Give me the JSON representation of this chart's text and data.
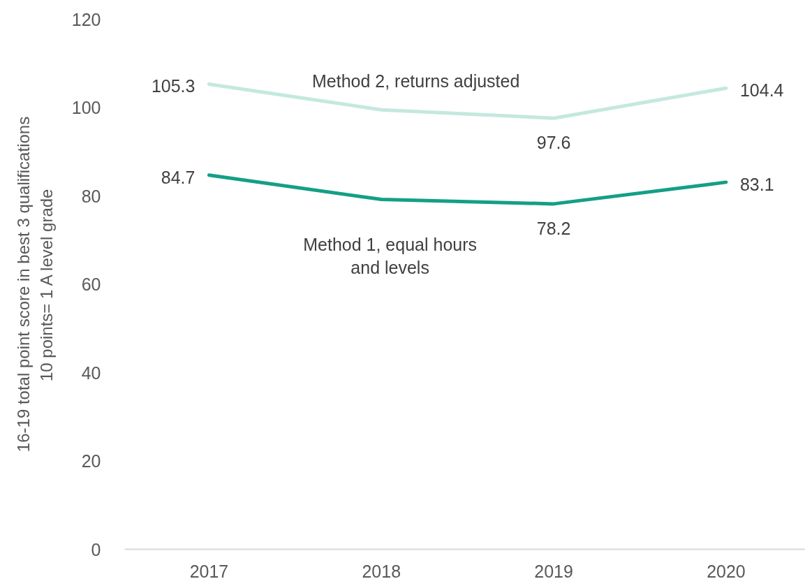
{
  "chart_data": {
    "type": "line",
    "ylabel": "16-19 total point score in best 3 qualifications\n10 points= 1 A level grade",
    "categories": [
      "2017",
      "2018",
      "2019",
      "2020"
    ],
    "ylim": [
      0,
      120
    ],
    "yticks": [
      0,
      20,
      40,
      60,
      80,
      100,
      120
    ],
    "series": [
      {
        "name": "Method 1, equal hours and levels",
        "color": "#149f86",
        "values": [
          84.7,
          79.2,
          78.2,
          83.1
        ],
        "value_labels": [
          "84.7",
          null,
          "78.2",
          "83.1"
        ]
      },
      {
        "name": "Method 2, returns adjusted",
        "color": "#c4e8df",
        "values": [
          105.3,
          99.5,
          97.6,
          104.4
        ],
        "value_labels": [
          "105.3",
          null,
          "97.6",
          "104.4"
        ]
      }
    ]
  }
}
